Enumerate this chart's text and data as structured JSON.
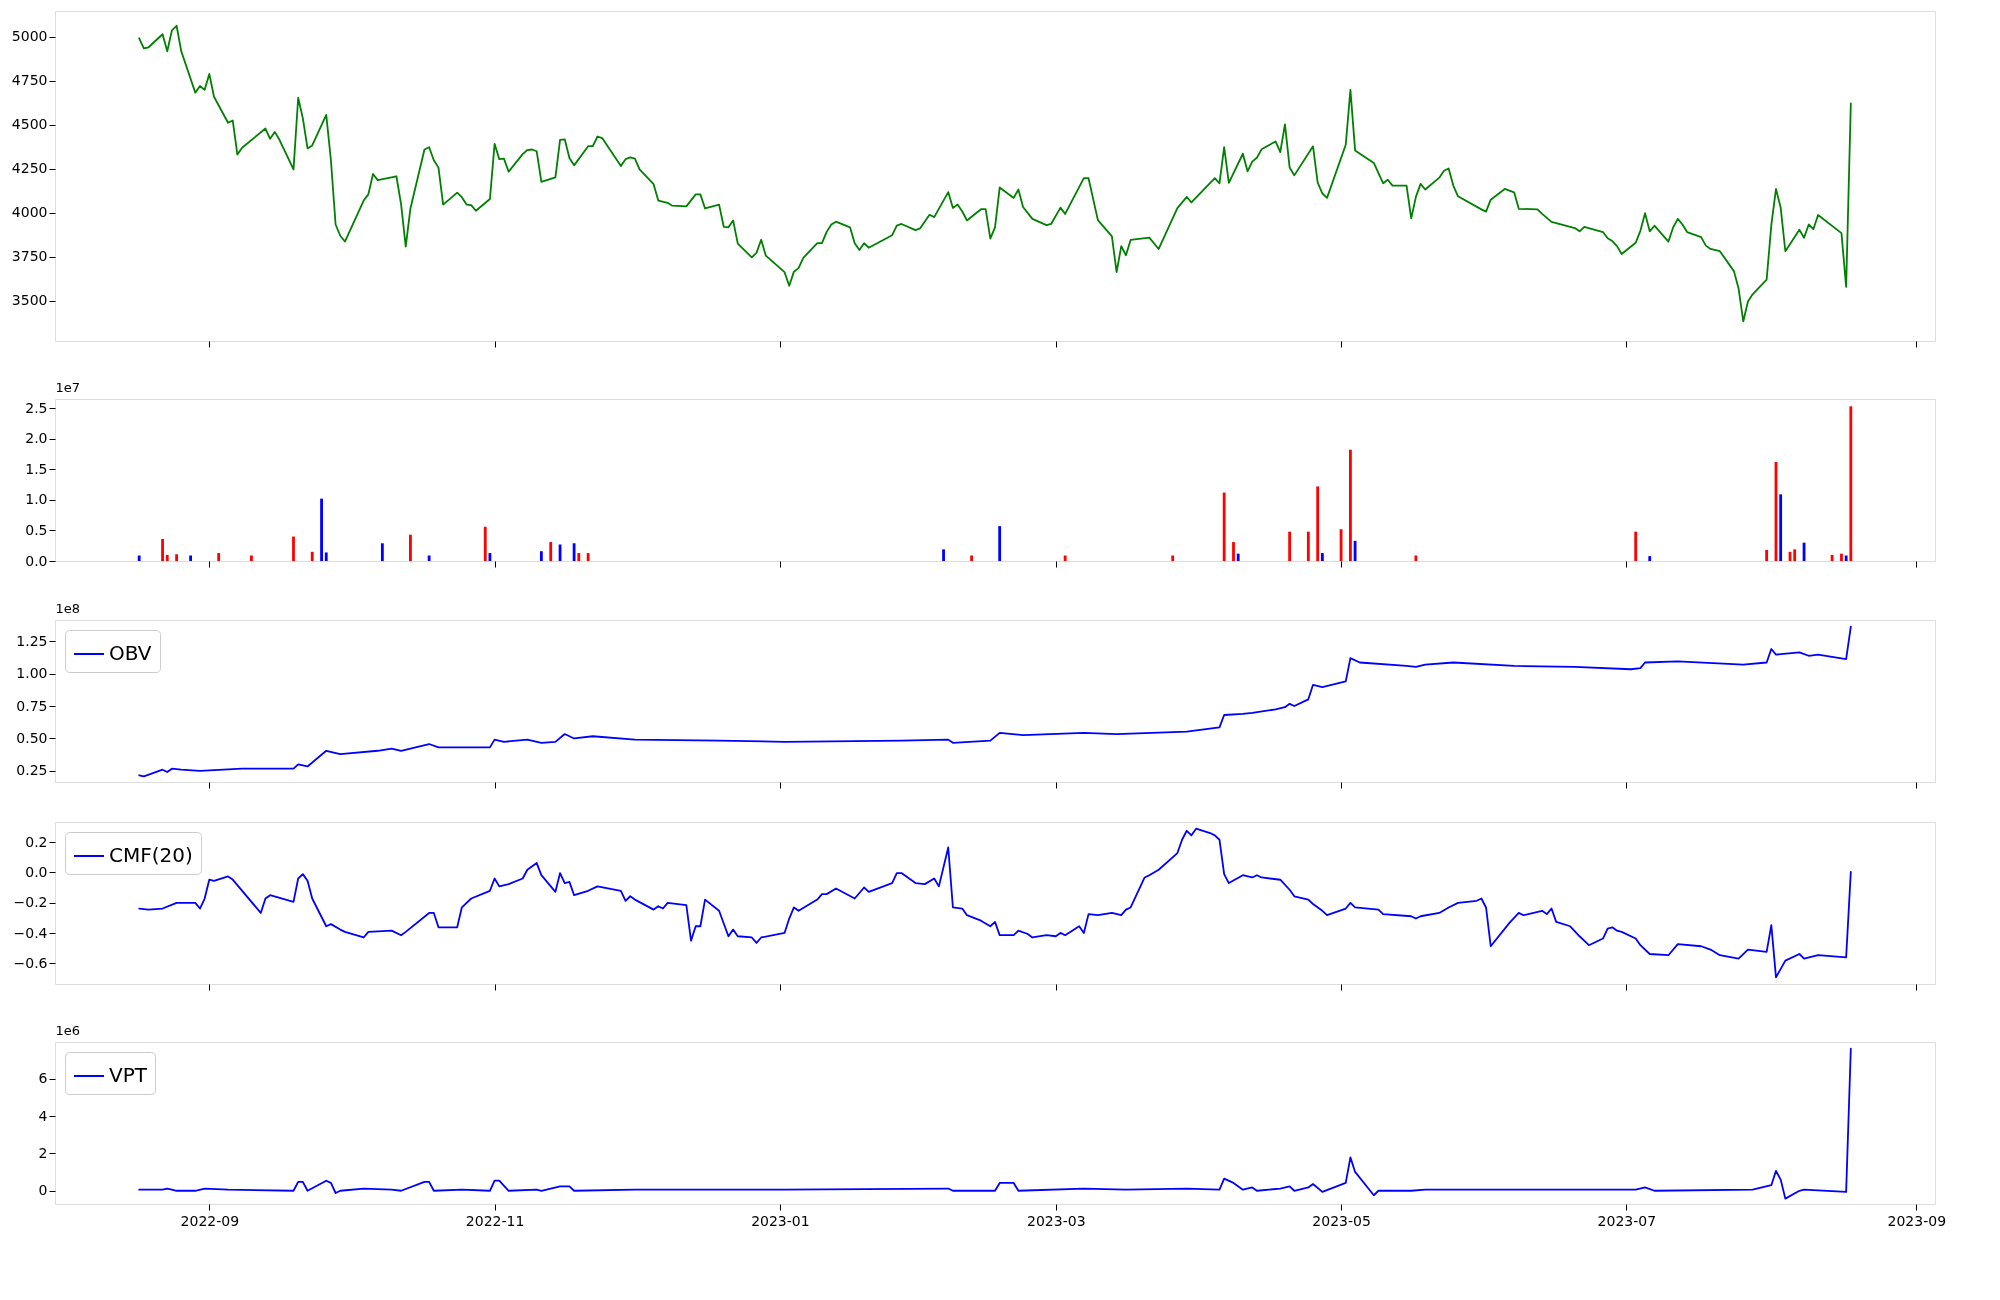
{
  "chart_data": [
    {
      "type": "line",
      "xlim": [
        "2022-07-30",
        "2023-09-05"
      ],
      "xticks": [
        {
          "value": "2022-09-01",
          "label": null
        },
        {
          "value": "2022-11-01",
          "label": null
        },
        {
          "value": "2023-01-01",
          "label": null
        },
        {
          "value": "2023-03-01",
          "label": null
        },
        {
          "value": "2023-05-01",
          "label": null
        },
        {
          "value": "2023-07-01",
          "label": null
        },
        {
          "value": "2023-09-01",
          "label": null
        }
      ],
      "ylim": [
        3270,
        5145
      ],
      "yticks": [
        3500,
        3750,
        4000,
        4250,
        4500,
        4750,
        5000
      ],
      "tick_labels": "y",
      "series": [
        {
          "color": "#008000",
          "x": [
            "2022-08-17",
            "2022-08-18",
            "2022-08-19",
            "2022-08-22",
            "2022-08-23",
            "2022-08-24",
            "2022-08-25",
            "2022-08-26",
            "2022-08-29",
            "2022-08-30",
            "2022-08-31",
            "2022-09-01",
            "2022-09-02",
            "2022-09-05",
            "2022-09-06",
            "2022-09-07",
            "2022-09-08",
            "2022-09-13",
            "2022-09-14",
            "2022-09-15",
            "2022-09-16",
            "2022-09-19",
            "2022-09-20",
            "2022-09-21",
            "2022-09-22",
            "2022-09-23",
            "2022-09-26",
            "2022-09-27",
            "2022-09-28",
            "2022-09-29",
            "2022-09-30",
            "2022-10-04",
            "2022-10-05",
            "2022-10-06",
            "2022-10-07",
            "2022-10-11",
            "2022-10-12",
            "2022-10-13",
            "2022-10-14",
            "2022-10-17",
            "2022-10-18",
            "2022-10-19",
            "2022-10-20",
            "2022-10-21",
            "2022-10-24",
            "2022-10-25",
            "2022-10-26",
            "2022-10-27",
            "2022-10-28",
            "2022-10-31",
            "2022-11-01",
            "2022-11-02",
            "2022-11-03",
            "2022-11-04",
            "2022-11-07",
            "2022-11-08",
            "2022-11-09",
            "2022-11-10",
            "2022-11-11",
            "2022-11-14",
            "2022-11-15",
            "2022-11-16",
            "2022-11-17",
            "2022-11-18",
            "2022-11-21",
            "2022-11-22",
            "2022-11-23",
            "2022-11-24",
            "2022-11-28",
            "2022-11-29",
            "2022-11-30",
            "2022-12-01",
            "2022-12-02",
            "2022-12-05",
            "2022-12-06",
            "2022-12-08",
            "2022-12-09",
            "2022-12-12",
            "2022-12-14",
            "2022-12-15",
            "2022-12-16",
            "2022-12-19",
            "2022-12-20",
            "2022-12-21",
            "2022-12-22",
            "2022-12-23",
            "2022-12-26",
            "2022-12-27",
            "2022-12-28",
            "2022-12-29",
            "2023-01-02",
            "2023-01-03",
            "2023-01-04",
            "2023-01-05",
            "2023-01-06",
            "2023-01-09",
            "2023-01-10",
            "2023-01-11",
            "2023-01-12",
            "2023-01-13",
            "2023-01-16",
            "2023-01-17",
            "2023-01-18",
            "2023-01-19",
            "2023-01-20",
            "2023-01-25",
            "2023-01-26",
            "2023-01-27",
            "2023-01-30",
            "2023-01-31",
            "2023-02-02",
            "2023-02-03",
            "2023-02-06",
            "2023-02-07",
            "2023-02-08",
            "2023-02-09",
            "2023-02-10",
            "2023-02-13",
            "2023-02-14",
            "2023-02-15",
            "2023-02-16",
            "2023-02-17",
            "2023-02-20",
            "2023-02-21",
            "2023-02-22",
            "2023-02-24",
            "2023-02-27",
            "2023-02-28",
            "2023-03-02",
            "2023-03-03",
            "2023-03-07",
            "2023-03-08",
            "2023-03-10",
            "2023-03-13",
            "2023-03-14",
            "2023-03-15",
            "2023-03-16",
            "2023-03-17",
            "2023-03-21",
            "2023-03-23",
            "2023-03-27",
            "2023-03-29",
            "2023-03-30",
            "2023-04-04",
            "2023-04-05",
            "2023-04-06",
            "2023-04-07",
            "2023-04-10",
            "2023-04-11",
            "2023-04-12",
            "2023-04-13",
            "2023-04-14",
            "2023-04-17",
            "2023-04-18",
            "2023-04-19",
            "2023-04-20",
            "2023-04-21",
            "2023-04-25",
            "2023-04-26",
            "2023-04-27",
            "2023-04-28",
            "2023-05-02",
            "2023-05-03",
            "2023-05-04",
            "2023-05-08",
            "2023-05-10",
            "2023-05-11",
            "2023-05-12",
            "2023-05-15",
            "2023-05-16",
            "2023-05-17",
            "2023-05-18",
            "2023-05-19",
            "2023-05-22",
            "2023-05-23",
            "2023-05-24",
            "2023-05-25",
            "2023-05-26",
            "2023-05-31",
            "2023-06-01",
            "2023-06-02",
            "2023-06-05",
            "2023-06-07",
            "2023-06-08",
            "2023-06-12",
            "2023-06-13",
            "2023-06-15",
            "2023-06-20",
            "2023-06-21",
            "2023-06-22",
            "2023-06-26",
            "2023-06-27",
            "2023-06-28",
            "2023-06-29",
            "2023-06-30",
            "2023-07-03",
            "2023-07-04",
            "2023-07-05",
            "2023-07-06",
            "2023-07-07",
            "2023-07-10",
            "2023-07-11",
            "2023-07-12",
            "2023-07-13",
            "2023-07-14",
            "2023-07-17",
            "2023-07-18",
            "2023-07-19",
            "2023-07-21",
            "2023-07-24",
            "2023-07-25",
            "2023-07-26",
            "2023-07-27",
            "2023-07-28",
            "2023-07-31",
            "2023-08-01",
            "2023-08-02",
            "2023-08-03",
            "2023-08-04",
            "2023-08-07",
            "2023-08-08",
            "2023-08-09",
            "2023-08-10",
            "2023-08-11",
            "2023-08-16",
            "2023-08-17",
            "2023-08-18"
          ],
          "values": [
            4990,
            4932,
            4939,
            5013,
            4916,
            5035,
            5061,
            4916,
            4681,
            4719,
            4697,
            4787,
            4658,
            4510,
            4523,
            4329,
            4368,
            4477,
            4419,
            4458,
            4413,
            4245,
            4652,
            4535,
            4364,
            4381,
            4555,
            4297,
            3932,
            3868,
            3835,
            4068,
            4103,
            4219,
            4184,
            4206,
            4048,
            3806,
            4023,
            4358,
            4371,
            4297,
            4255,
            4045,
            4113,
            4087,
            4045,
            4042,
            4010,
            4077,
            4390,
            4303,
            4306,
            4232,
            4332,
            4355,
            4358,
            4348,
            4174,
            4200,
            4413,
            4416,
            4310,
            4268,
            4377,
            4377,
            4432,
            4423,
            4264,
            4303,
            4313,
            4306,
            4245,
            4161,
            4068,
            4055,
            4039,
            4035,
            4103,
            4103,
            4023,
            4045,
            3919,
            3916,
            3955,
            3823,
            3745,
            3771,
            3845,
            3755,
            3661,
            3584,
            3664,
            3684,
            3742,
            3826,
            3826,
            3890,
            3932,
            3948,
            3916,
            3826,
            3787,
            3826,
            3800,
            3871,
            3926,
            3935,
            3900,
            3910,
            3987,
            3974,
            4116,
            4026,
            4045,
            4006,
            3955,
            4019,
            4019,
            3852,
            3916,
            4142,
            4083,
            4131,
            4031,
            3964,
            3928,
            3935,
            4028,
            3992,
            4195,
            4195,
            3957,
            3864,
            3661,
            3809,
            3757,
            3844,
            3857,
            3793,
            4025,
            4089,
            4057,
            4195,
            4166,
            4372,
            4169,
            4334,
            4234,
            4289,
            4311,
            4359,
            4404,
            4343,
            4501,
            4256,
            4211,
            4376,
            4170,
            4108,
            4083,
            4385,
            4697,
            4353,
            4282,
            4166,
            4186,
            4153,
            4153,
            3967,
            4089,
            4163,
            4131,
            4198,
            4237,
            4250,
            4153,
            4092,
            4018,
            4005,
            4073,
            4134,
            4115,
            4021,
            4018,
            3992,
            3947,
            3912,
            3893,
            3918,
            3889,
            3854,
            3838,
            3809,
            3764,
            3828,
            3896,
            3996,
            3893,
            3925,
            3835,
            3915,
            3964,
            3932,
            3889,
            3860,
            3812,
            3793,
            3780,
            3667,
            3568,
            3381,
            3494,
            3535,
            3619,
            3928,
            4134,
            4028,
            3780,
            3902,
            3857,
            3932,
            3906,
            3986,
            3883,
            3577,
            4620
          ]
        }
      ]
    },
    {
      "type": "bar",
      "ylabel": "1e7",
      "xlim": [
        "2022-07-30",
        "2023-09-05"
      ],
      "xticks": [
        {
          "value": "2022-09-01",
          "label": null
        },
        {
          "value": "2022-11-01",
          "label": null
        },
        {
          "value": "2023-01-01",
          "label": null
        },
        {
          "value": "2023-03-01",
          "label": null
        },
        {
          "value": "2023-05-01",
          "label": null
        },
        {
          "value": "2023-07-01",
          "label": null
        },
        {
          "value": "2023-09-01",
          "label": null
        }
      ],
      "ylim": [
        0,
        2.65
      ],
      "yticks": [
        {
          "value": 0,
          "label": "0.0"
        },
        0.5,
        {
          "value": 1,
          "label": "1.0"
        },
        1.5,
        {
          "value": 2,
          "label": "2.0"
        },
        2.5
      ],
      "tick_labels": "y",
      "series": [
        {
          "color": "#ff0000",
          "x": [
            "2022-08-22",
            "2022-08-23",
            "2022-08-25",
            "2022-09-03",
            "2022-09-10",
            "2022-09-19",
            "2022-09-23",
            "2022-10-14",
            "2022-10-30",
            "2022-11-13",
            "2022-11-19",
            "2022-11-21",
            "2023-02-11",
            "2023-03-03",
            "2023-03-26",
            "2023-04-06",
            "2023-04-08",
            "2023-04-20",
            "2023-04-24",
            "2023-04-26",
            "2023-05-01",
            "2023-05-03",
            "2023-05-17",
            "2023-07-03",
            "2023-07-31",
            "2023-08-02",
            "2023-08-05",
            "2023-08-06",
            "2023-08-14",
            "2023-08-16",
            "2023-08-18"
          ],
          "values": [
            0.36,
            0.1,
            0.11,
            0.13,
            0.09,
            0.4,
            0.15,
            0.43,
            0.56,
            0.31,
            0.13,
            0.13,
            0.09,
            0.09,
            0.09,
            1.12,
            0.31,
            0.48,
            0.48,
            1.22,
            0.52,
            1.82,
            0.09,
            0.48,
            0.18,
            1.62,
            0.15,
            0.19,
            0.1,
            0.12,
            2.53
          ]
        },
        {
          "color": "#0000ff",
          "x": [
            "2022-08-17",
            "2022-08-28",
            "2022-09-25",
            "2022-09-26",
            "2022-10-08",
            "2022-10-18",
            "2022-10-31",
            "2022-11-11",
            "2022-11-15",
            "2022-11-18",
            "2023-02-05",
            "2023-02-17",
            "2023-04-09",
            "2023-04-27",
            "2023-05-04",
            "2023-07-06",
            "2023-08-03",
            "2023-08-08",
            "2023-08-17"
          ],
          "values": [
            0.09,
            0.09,
            1.02,
            0.14,
            0.29,
            0.09,
            0.13,
            0.16,
            0.27,
            0.29,
            0.19,
            0.57,
            0.12,
            0.13,
            0.33,
            0.08,
            1.09,
            0.3,
            0.09
          ]
        }
      ]
    },
    {
      "type": "line",
      "ylabel": "1e8",
      "legend": "top left",
      "xlim": [
        "2022-07-30",
        "2023-09-05"
      ],
      "xticks": [
        {
          "value": "2022-09-01",
          "label": null
        },
        {
          "value": "2022-11-01",
          "label": null
        },
        {
          "value": "2023-01-01",
          "label": null
        },
        {
          "value": "2023-03-01",
          "label": null
        },
        {
          "value": "2023-05-01",
          "label": null
        },
        {
          "value": "2023-07-01",
          "label": null
        },
        {
          "value": "2023-09-01",
          "label": null
        }
      ],
      "ylim": [
        0.164,
        1.414
      ],
      "yticks": [
        0.25,
        {
          "value": 0.5,
          "label": "0.50"
        },
        0.75,
        {
          "value": 1,
          "label": "1.00"
        },
        1.25
      ],
      "tick_labels": "y",
      "series": [
        {
          "name": "OBV",
          "color": "#0000ff",
          "x": [
            "2022-08-17",
            "2022-08-18",
            "2022-08-22",
            "2022-08-23",
            "2022-08-24",
            "2022-08-26",
            "2022-08-30",
            "2022-09-08",
            "2022-09-19",
            "2022-09-20",
            "2022-09-22",
            "2022-09-26",
            "2022-09-29",
            "2022-10-07",
            "2022-10-10",
            "2022-10-12",
            "2022-10-18",
            "2022-10-20",
            "2022-10-25",
            "2022-10-31",
            "2022-11-01",
            "2022-11-03",
            "2022-11-08",
            "2022-11-11",
            "2022-11-14",
            "2022-11-16",
            "2022-11-18",
            "2022-11-22",
            "2022-12-01",
            "2022-12-19",
            "2023-01-02",
            "2023-01-27",
            "2023-02-06",
            "2023-02-07",
            "2023-02-15",
            "2023-02-17",
            "2023-02-22",
            "2023-03-07",
            "2023-03-14",
            "2023-03-29",
            "2023-04-05",
            "2023-04-06",
            "2023-04-10",
            "2023-04-12",
            "2023-04-17",
            "2023-04-19",
            "2023-04-20",
            "2023-04-21",
            "2023-04-24",
            "2023-04-25",
            "2023-04-27",
            "2023-05-02",
            "2023-05-03",
            "2023-05-05",
            "2023-05-15",
            "2023-05-17",
            "2023-05-19",
            "2023-05-25",
            "2023-06-07",
            "2023-06-20",
            "2023-07-02",
            "2023-07-04",
            "2023-07-05",
            "2023-07-12",
            "2023-07-26",
            "2023-07-31",
            "2023-08-01",
            "2023-08-02",
            "2023-08-07",
            "2023-08-09",
            "2023-08-11",
            "2023-08-17",
            "2023-08-18"
          ],
          "values": [
            0.216,
            0.207,
            0.259,
            0.241,
            0.267,
            0.259,
            0.25,
            0.267,
            0.267,
            0.3,
            0.284,
            0.405,
            0.379,
            0.405,
            0.422,
            0.405,
            0.457,
            0.431,
            0.431,
            0.431,
            0.491,
            0.474,
            0.491,
            0.466,
            0.474,
            0.534,
            0.5,
            0.517,
            0.491,
            0.483,
            0.474,
            0.483,
            0.491,
            0.466,
            0.483,
            0.543,
            0.526,
            0.543,
            0.534,
            0.552,
            0.586,
            0.681,
            0.69,
            0.698,
            0.724,
            0.741,
            0.767,
            0.75,
            0.802,
            0.914,
            0.897,
            0.94,
            1.12,
            1.086,
            1.06,
            1.052,
            1.069,
            1.086,
            1.06,
            1.052,
            1.034,
            1.043,
            1.086,
            1.095,
            1.069,
            1.086,
            1.19,
            1.147,
            1.164,
            1.138,
            1.147,
            1.112,
            1.362
          ]
        }
      ]
    },
    {
      "type": "line",
      "legend": "top left",
      "xlim": [
        "2022-07-30",
        "2023-09-05"
      ],
      "xticks": [
        {
          "value": "2022-09-01",
          "label": null
        },
        {
          "value": "2022-11-01",
          "label": null
        },
        {
          "value": "2023-01-01",
          "label": null
        },
        {
          "value": "2023-03-01",
          "label": null
        },
        {
          "value": "2023-05-01",
          "label": null
        },
        {
          "value": "2023-07-01",
          "label": null
        },
        {
          "value": "2023-09-01",
          "label": null
        }
      ],
      "ylim": [
        -0.736,
        0.333
      ],
      "yticks": [
        {
          "value": -0.6,
          "label": "−0.6"
        },
        {
          "value": -0.4,
          "label": "−0.4"
        },
        {
          "value": -0.2,
          "label": "−0.2"
        },
        {
          "value": 0,
          "label": "0.0"
        },
        0.2
      ],
      "tick_labels": "y",
      "series": [
        {
          "name": "CMF(20)",
          "color": "#0000ff",
          "x": [
            "2022-08-17",
            "2022-08-19",
            "2022-08-22",
            "2022-08-25",
            "2022-08-29",
            "2022-08-30",
            "2022-08-31",
            "2022-09-01",
            "2022-09-02",
            "2022-09-05",
            "2022-09-06",
            "2022-09-12",
            "2022-09-13",
            "2022-09-14",
            "2022-09-19",
            "2022-09-20",
            "2022-09-21",
            "2022-09-22",
            "2022-09-23",
            "2022-09-26",
            "2022-09-27",
            "2022-09-29",
            "2022-09-30",
            "2022-10-04",
            "2022-10-05",
            "2022-10-10",
            "2022-10-12",
            "2022-10-13",
            "2022-10-18",
            "2022-10-19",
            "2022-10-20",
            "2022-10-24",
            "2022-10-25",
            "2022-10-27",
            "2022-10-31",
            "2022-11-01",
            "2022-11-02",
            "2022-11-04",
            "2022-11-07",
            "2022-11-08",
            "2022-11-10",
            "2022-11-11",
            "2022-11-14",
            "2022-11-15",
            "2022-11-16",
            "2022-11-17",
            "2022-11-18",
            "2022-11-21",
            "2022-11-23",
            "2022-11-28",
            "2022-11-29",
            "2022-11-30",
            "2022-12-01",
            "2022-12-05",
            "2022-12-06",
            "2022-12-07",
            "2022-12-08",
            "2022-12-12",
            "2022-12-13",
            "2022-12-14",
            "2022-12-15",
            "2022-12-16",
            "2022-12-19",
            "2022-12-21",
            "2022-12-22",
            "2022-12-23",
            "2022-12-26",
            "2022-12-27",
            "2022-12-28",
            "2023-01-02",
            "2023-01-03",
            "2023-01-04",
            "2023-01-05",
            "2023-01-09",
            "2023-01-10",
            "2023-01-11",
            "2023-01-13",
            "2023-01-17",
            "2023-01-19",
            "2023-01-20",
            "2023-01-25",
            "2023-01-26",
            "2023-01-27",
            "2023-01-30",
            "2023-02-01",
            "2023-02-03",
            "2023-02-04",
            "2023-02-06",
            "2023-02-07",
            "2023-02-09",
            "2023-02-10",
            "2023-02-13",
            "2023-02-15",
            "2023-02-16",
            "2023-02-17",
            "2023-02-20",
            "2023-02-21",
            "2023-02-23",
            "2023-02-24",
            "2023-02-27",
            "2023-03-01",
            "2023-03-02",
            "2023-03-03",
            "2023-03-06",
            "2023-03-07",
            "2023-03-08",
            "2023-03-10",
            "2023-03-13",
            "2023-03-15",
            "2023-03-16",
            "2023-03-17",
            "2023-03-20",
            "2023-03-21",
            "2023-03-23",
            "2023-03-27",
            "2023-03-28",
            "2023-03-29",
            "2023-03-30",
            "2023-03-31",
            "2023-04-03",
            "2023-04-04",
            "2023-04-05",
            "2023-04-06",
            "2023-04-07",
            "2023-04-10",
            "2023-04-12",
            "2023-04-13",
            "2023-04-14",
            "2023-04-18",
            "2023-04-20",
            "2023-04-21",
            "2023-04-24",
            "2023-04-25",
            "2023-04-27",
            "2023-04-28",
            "2023-05-02",
            "2023-05-03",
            "2023-05-04",
            "2023-05-09",
            "2023-05-10",
            "2023-05-16",
            "2023-05-17",
            "2023-05-18",
            "2023-05-22",
            "2023-05-24",
            "2023-05-26",
            "2023-05-30",
            "2023-05-31",
            "2023-06-01",
            "2023-06-02",
            "2023-06-06",
            "2023-06-08",
            "2023-06-09",
            "2023-06-13",
            "2023-06-14",
            "2023-06-15",
            "2023-06-16",
            "2023-06-19",
            "2023-06-21",
            "2023-06-23",
            "2023-06-26",
            "2023-06-27",
            "2023-06-28",
            "2023-06-29",
            "2023-06-30",
            "2023-07-03",
            "2023-07-04",
            "2023-07-06",
            "2023-07-10",
            "2023-07-12",
            "2023-07-17",
            "2023-07-19",
            "2023-07-21",
            "2023-07-25",
            "2023-07-27",
            "2023-07-31",
            "2023-08-01",
            "2023-08-02",
            "2023-08-04",
            "2023-08-07",
            "2023-08-08",
            "2023-08-11",
            "2023-08-17",
            "2023-08-18"
          ],
          "values": [
            -0.238,
            -0.245,
            -0.238,
            -0.201,
            -0.201,
            -0.238,
            -0.172,
            -0.047,
            -0.055,
            -0.026,
            -0.047,
            -0.267,
            -0.172,
            -0.15,
            -0.194,
            -0.04,
            -0.011,
            -0.055,
            -0.172,
            -0.355,
            -0.341,
            -0.377,
            -0.392,
            -0.429,
            -0.392,
            -0.384,
            -0.414,
            -0.392,
            -0.267,
            -0.267,
            -0.362,
            -0.362,
            -0.23,
            -0.172,
            -0.121,
            -0.04,
            -0.092,
            -0.077,
            -0.04,
            0.018,
            0.062,
            -0.018,
            -0.128,
            -0.004,
            -0.07,
            -0.062,
            -0.15,
            -0.121,
            -0.092,
            -0.121,
            -0.187,
            -0.157,
            -0.179,
            -0.245,
            -0.223,
            -0.238,
            -0.201,
            -0.216,
            -0.45,
            -0.355,
            -0.355,
            -0.179,
            -0.253,
            -0.421,
            -0.377,
            -0.421,
            -0.429,
            -0.465,
            -0.429,
            -0.399,
            -0.304,
            -0.231,
            -0.253,
            -0.179,
            -0.143,
            -0.143,
            -0.106,
            -0.172,
            -0.099,
            -0.128,
            -0.07,
            -0.004,
            -0.004,
            -0.07,
            -0.077,
            -0.04,
            -0.092,
            0.165,
            -0.231,
            -0.238,
            -0.282,
            -0.318,
            -0.355,
            -0.326,
            -0.414,
            -0.414,
            -0.384,
            -0.406,
            -0.429,
            -0.414,
            -0.421,
            -0.399,
            -0.414,
            -0.355,
            -0.399,
            -0.275,
            -0.282,
            -0.267,
            -0.282,
            -0.245,
            -0.231,
            -0.033,
            -0.018,
            0.018,
            0.128,
            0.216,
            0.275,
            0.245,
            0.289,
            0.26,
            0.245,
            0.216,
            -0.011,
            -0.07,
            -0.018,
            -0.033,
            -0.018,
            -0.033,
            -0.048,
            -0.114,
            -0.157,
            -0.179,
            -0.208,
            -0.253,
            -0.282,
            -0.238,
            -0.201,
            -0.231,
            -0.245,
            -0.275,
            -0.289,
            -0.304,
            -0.289,
            -0.267,
            -0.231,
            -0.201,
            -0.187,
            -0.172,
            -0.231,
            -0.487,
            -0.333,
            -0.267,
            -0.282,
            -0.253,
            -0.275,
            -0.238,
            -0.326,
            -0.355,
            -0.421,
            -0.48,
            -0.436,
            -0.37,
            -0.362,
            -0.384,
            -0.392,
            -0.436,
            -0.48,
            -0.538,
            -0.546,
            -0.473,
            -0.487,
            -0.509,
            -0.546,
            -0.568,
            -0.509,
            -0.524,
            -0.348,
            -0.692,
            -0.582,
            -0.538,
            -0.568,
            -0.546,
            -0.56,
            0.004
          ]
        }
      ]
    },
    {
      "type": "line",
      "ylabel": "1e6",
      "legend": "top left",
      "xlim": [
        "2022-07-30",
        "2023-09-05"
      ],
      "ylim": [
        -0.71,
        7.98
      ],
      "yticks": [
        0,
        2,
        4,
        6
      ],
      "xticks": [
        {
          "value": "2022-09-01",
          "label": "2022-09"
        },
        {
          "value": "2022-11-01",
          "label": "2022-11"
        },
        {
          "value": "2023-01-01",
          "label": "2023-01"
        },
        {
          "value": "2023-03-01",
          "label": "2023-03"
        },
        {
          "value": "2023-05-01",
          "label": "2023-05"
        },
        {
          "value": "2023-07-01",
          "label": "2023-07"
        },
        {
          "value": "2023-09-01",
          "label": "2023-09"
        }
      ],
      "series": [
        {
          "name": "VPT",
          "color": "#0000ff",
          "x": [
            "2022-08-17",
            "2022-08-22",
            "2022-08-23",
            "2022-08-24",
            "2022-08-25",
            "2022-08-29",
            "2022-08-31",
            "2022-09-05",
            "2022-09-19",
            "2022-09-20",
            "2022-09-21",
            "2022-09-22",
            "2022-09-26",
            "2022-09-27",
            "2022-09-28",
            "2022-09-29",
            "2022-10-04",
            "2022-10-10",
            "2022-10-12",
            "2022-10-17",
            "2022-10-18",
            "2022-10-19",
            "2022-10-25",
            "2022-10-31",
            "2022-11-01",
            "2022-11-02",
            "2022-11-04",
            "2022-11-10",
            "2022-11-11",
            "2022-11-15",
            "2022-11-17",
            "2022-11-18",
            "2022-12-01",
            "2023-01-02",
            "2023-02-06",
            "2023-02-07",
            "2023-02-16",
            "2023-02-17",
            "2023-02-20",
            "2023-02-21",
            "2023-03-07",
            "2023-03-16",
            "2023-03-29",
            "2023-04-05",
            "2023-04-06",
            "2023-04-08",
            "2023-04-10",
            "2023-04-12",
            "2023-04-13",
            "2023-04-18",
            "2023-04-20",
            "2023-04-21",
            "2023-04-24",
            "2023-04-25",
            "2023-04-27",
            "2023-05-02",
            "2023-05-03",
            "2023-05-04",
            "2023-05-08",
            "2023-05-09",
            "2023-05-16",
            "2023-05-19",
            "2023-06-07",
            "2023-07-03",
            "2023-07-05",
            "2023-07-07",
            "2023-07-28",
            "2023-08-01",
            "2023-08-02",
            "2023-08-03",
            "2023-08-04",
            "2023-08-07",
            "2023-08-08",
            "2023-08-17",
            "2023-08-18"
          ],
          "values": [
            0.06,
            0.06,
            0.12,
            0.06,
            0,
            0,
            0.12,
            0.06,
            0,
            0.48,
            0.48,
            0,
            0.54,
            0.42,
            -0.12,
            0,
            0.12,
            0.06,
            0,
            0.48,
            0.48,
            0,
            0.06,
            0,
            0.54,
            0.54,
            0,
            0.06,
            0,
            0.24,
            0.24,
            0,
            0.06,
            0.06,
            0.12,
            0,
            0,
            0.42,
            0.42,
            0,
            0.12,
            0.06,
            0.12,
            0.06,
            0.65,
            0.42,
            0.06,
            0.18,
            0,
            0.12,
            0.24,
            0,
            0.18,
            0.36,
            -0.06,
            0.42,
            1.79,
            1.01,
            -0.24,
            0,
            0,
            0.06,
            0.06,
            0.06,
            0.18,
            0,
            0.06,
            0.3,
            1.07,
            0.6,
            -0.42,
            0,
            0.06,
            -0.06,
            7.62
          ]
        }
      ]
    }
  ]
}
